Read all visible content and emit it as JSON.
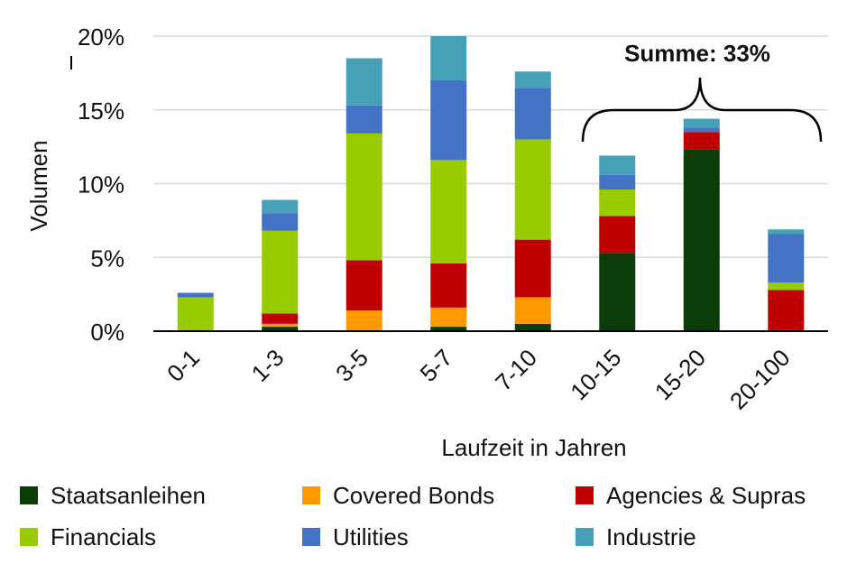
{
  "chart_data": {
    "type": "bar",
    "stacked": true,
    "title": "",
    "xlabel": "Laufzeit in Jahren",
    "ylabel": "Volumen",
    "ylim": [
      0,
      20
    ],
    "yticks": [
      0,
      5,
      10,
      15,
      20
    ],
    "ytick_labels": [
      "0%",
      "5%",
      "10%",
      "15%",
      "20%"
    ],
    "grid": true,
    "legend_position": "bottom",
    "categories": [
      "0-1",
      "1-3",
      "3-5",
      "5-7",
      "7-10",
      "10-15",
      "15-20",
      "20-100"
    ],
    "series": [
      {
        "name": "Staatsanleihen",
        "color": "#0b3d0b",
        "values": [
          0,
          0.3,
          0,
          0.3,
          0.5,
          5.3,
          12.3,
          0.1
        ]
      },
      {
        "name": "Covered Bonds",
        "color": "#ff9900",
        "values": [
          0,
          0.2,
          1.4,
          1.3,
          1.8,
          0,
          0,
          0
        ]
      },
      {
        "name": "Agencies & Supras",
        "color": "#c00000",
        "values": [
          0,
          0.7,
          3.4,
          3.0,
          3.9,
          2.5,
          1.2,
          2.7
        ]
      },
      {
        "name": "Financials",
        "color": "#99cc00",
        "values": [
          2.3,
          5.6,
          8.6,
          7.0,
          6.8,
          1.8,
          0,
          0.5
        ]
      },
      {
        "name": "Utilities",
        "color": "#4472c4",
        "values": [
          0.3,
          1.2,
          1.9,
          5.4,
          3.5,
          1.0,
          0.3,
          3.3
        ]
      },
      {
        "name": "Industrie",
        "color": "#46a0b8",
        "values": [
          0,
          0.9,
          3.2,
          3.0,
          1.1,
          1.3,
          0.6,
          0.3
        ]
      }
    ],
    "annotation": {
      "text": "Summe: 33%",
      "spans": [
        "10-15",
        "20-100"
      ]
    }
  }
}
